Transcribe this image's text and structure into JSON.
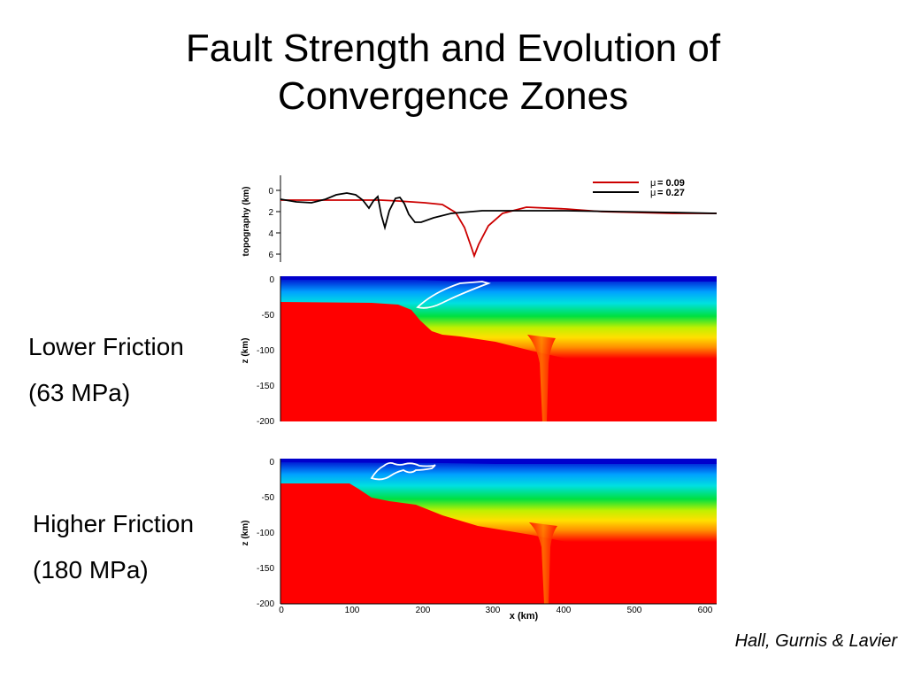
{
  "slide": {
    "title_line1": "Fault Strength and Evolution of",
    "title_line2": "Convergence Zones",
    "credit": "Hall, Gurnis & Lavier"
  },
  "panels": {
    "lower": {
      "name_line1": "Lower Friction",
      "name_line2": "(63 MPa)"
    },
    "higher": {
      "name_line1": "Higher Friction",
      "name_line2": "(180 MPa)"
    }
  },
  "topography": {
    "ylabel": "topography (km)",
    "yticks": [
      "0",
      "2",
      "4",
      "6"
    ],
    "legend": [
      {
        "symbol": "μ",
        "text": "= 0.09",
        "color": "#cc0000"
      },
      {
        "symbol": "μ",
        "text": "= 0.27",
        "color": "#000000"
      }
    ]
  },
  "sections": {
    "ylabel": "z (km)",
    "yticks": [
      "0",
      "-50",
      "-100",
      "-150",
      "-200"
    ],
    "xlabel": "x (km)",
    "xticks": [
      "0",
      "100",
      "200",
      "300",
      "400",
      "500",
      "600"
    ]
  },
  "colors": {
    "mantle_red": "#ff0000",
    "surface_blue": "#0000cc",
    "fault_outline": "#ffffff"
  }
}
